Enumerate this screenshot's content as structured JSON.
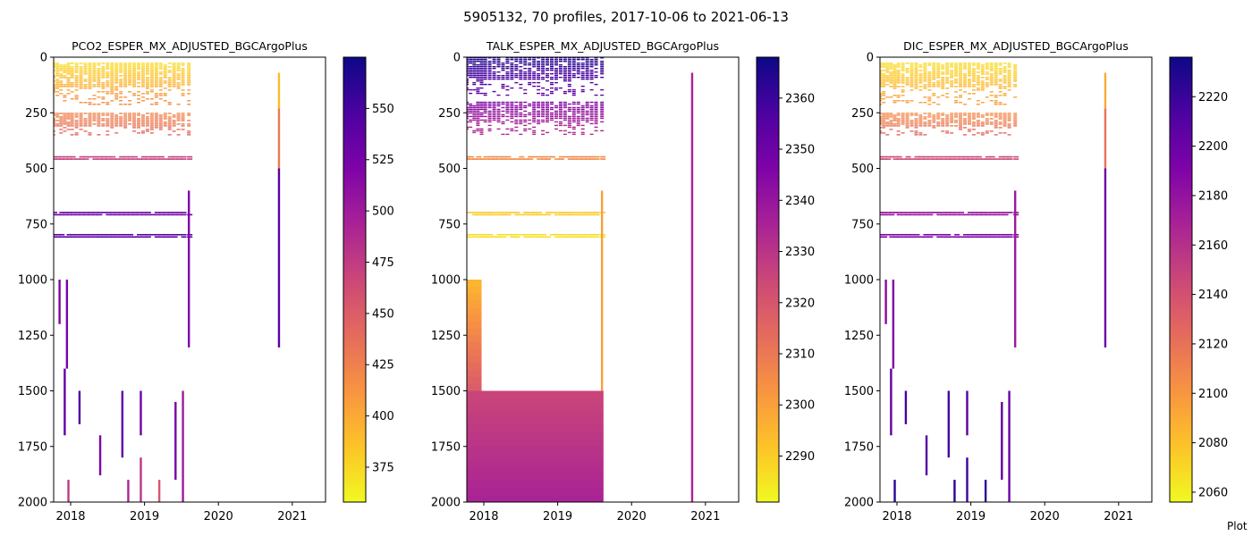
{
  "suptitle": "5905132, 70 profiles, 2017-10-06 to 2021-06-13",
  "footer": "Plot",
  "colormap": "plasma_r",
  "chart_data": [
    {
      "type": "heatmap",
      "title": "PCO2_ESPER_MX_ADJUSTED_BGCArgoPlus",
      "xlabel": "",
      "ylabel": "",
      "x_range": [
        2017.77,
        2021.45
      ],
      "y_range": [
        2000,
        0
      ],
      "x_ticks": [
        2018,
        2019,
        2020,
        2021
      ],
      "y_ticks": [
        0,
        250,
        500,
        750,
        1000,
        1250,
        1500,
        1750,
        2000
      ],
      "colorbar": {
        "range": [
          358,
          575
        ],
        "ticks": [
          375,
          400,
          425,
          450,
          475,
          500,
          525,
          550
        ]
      },
      "profile_times": [
        2017.77,
        2017.82,
        2017.87,
        2017.92,
        2017.97,
        2018.02,
        2018.08,
        2018.14,
        2018.2,
        2018.26,
        2018.32,
        2018.38,
        2018.44,
        2018.5,
        2018.56,
        2018.62,
        2018.68,
        2018.74,
        2018.8,
        2018.86,
        2018.92,
        2018.98,
        2019.04,
        2019.1,
        2019.16,
        2019.22,
        2019.28,
        2019.34,
        2019.4,
        2019.46,
        2019.52,
        2019.6,
        2020.82
      ],
      "depth_bands": [
        {
          "depth": [
            25,
            210
          ],
          "value_top": 372,
          "value_bottom": 415
        },
        {
          "depth": [
            250,
            350
          ],
          "value_top": 422,
          "value_bottom": 440
        },
        {
          "depth": [
            445,
            455
          ],
          "value": 470
        },
        {
          "depth": [
            695,
            705
          ],
          "value": 530
        },
        {
          "depth": [
            795,
            805
          ],
          "value": 540
        }
      ],
      "segments": [
        {
          "t": 2019.6,
          "depth": [
            600,
            1305
          ],
          "value": 520
        },
        {
          "t": 2020.82,
          "depth": [
            70,
            230
          ],
          "value": 390
        },
        {
          "t": 2020.82,
          "depth": [
            230,
            500
          ],
          "value": 430
        },
        {
          "t": 2020.82,
          "depth": [
            500,
            1305
          ],
          "value": 540
        },
        {
          "t": 2017.85,
          "depth": [
            1000,
            1200
          ],
          "value": 520
        },
        {
          "t": 2017.95,
          "depth": [
            1000,
            1400
          ],
          "value": 525
        },
        {
          "t": 2017.92,
          "depth": [
            1400,
            1700
          ],
          "value": 535
        },
        {
          "t": 2018.12,
          "depth": [
            1500,
            1650
          ],
          "value": 545
        },
        {
          "t": 2018.7,
          "depth": [
            1500,
            1800
          ],
          "value": 540
        },
        {
          "t": 2018.95,
          "depth": [
            1500,
            1700
          ],
          "value": 530
        },
        {
          "t": 2018.95,
          "depth": [
            1800,
            2000
          ],
          "value": 480
        },
        {
          "t": 2019.42,
          "depth": [
            1550,
            1900
          ],
          "value": 525
        },
        {
          "t": 2019.52,
          "depth": [
            1500,
            2000
          ],
          "value": 500
        },
        {
          "t": 2018.4,
          "depth": [
            1700,
            1880
          ],
          "value": 520
        },
        {
          "t": 2017.97,
          "depth": [
            1900,
            2000
          ],
          "value": 475
        },
        {
          "t": 2018.78,
          "depth": [
            1900,
            2000
          ],
          "value": 490
        },
        {
          "t": 2019.2,
          "depth": [
            1900,
            2000
          ],
          "value": 455
        }
      ]
    },
    {
      "type": "heatmap",
      "title": "TALK_ESPER_MX_ADJUSTED_BGCArgoPlus",
      "xlabel": "",
      "ylabel": "",
      "x_range": [
        2017.77,
        2021.45
      ],
      "y_range": [
        2000,
        0
      ],
      "x_ticks": [
        2018,
        2019,
        2020,
        2021
      ],
      "y_ticks": [
        0,
        250,
        500,
        750,
        1000,
        1250,
        1500,
        1750,
        2000
      ],
      "colorbar": {
        "range": [
          2281,
          2368
        ],
        "ticks": [
          2290,
          2300,
          2310,
          2320,
          2330,
          2340,
          2350,
          2360
        ]
      },
      "profile_times": [
        2017.77,
        2017.82,
        2017.87,
        2017.92,
        2017.97,
        2018.02,
        2018.08,
        2018.14,
        2018.2,
        2018.26,
        2018.32,
        2018.38,
        2018.44,
        2018.5,
        2018.56,
        2018.62,
        2018.68,
        2018.74,
        2018.8,
        2018.86,
        2018.92,
        2018.98,
        2019.04,
        2019.1,
        2019.16,
        2019.22,
        2019.28,
        2019.34,
        2019.4,
        2019.46,
        2019.52,
        2019.6,
        2020.82
      ],
      "depth_bands": [
        {
          "depth": [
            0,
            170
          ],
          "value_top": 2364,
          "value_bottom": 2350
        },
        {
          "depth": [
            200,
            350
          ],
          "value_top": 2345,
          "value_bottom": 2330
        },
        {
          "depth": [
            445,
            455
          ],
          "value": 2305
        },
        {
          "depth": [
            695,
            705
          ],
          "value": 2290
        },
        {
          "depth": [
            795,
            805
          ],
          "value": 2286
        }
      ],
      "segments": [
        {
          "t": 2019.6,
          "depth": [
            600,
            1500
          ],
          "value": 2300
        },
        {
          "t": 2020.82,
          "depth": [
            70,
            2000
          ],
          "value": 2335
        }
      ],
      "blocks": [
        {
          "t": [
            2017.77,
            2017.97
          ],
          "depth": [
            1000,
            1500
          ],
          "value_top": 2295,
          "value_bottom": 2318
        },
        {
          "t": [
            2017.77,
            2019.62
          ],
          "depth": [
            1500,
            2000
          ],
          "value_top": 2325,
          "value_bottom": 2335
        }
      ]
    },
    {
      "type": "heatmap",
      "title": "DIC_ESPER_MX_ADJUSTED_BGCArgoPlus",
      "xlabel": "",
      "ylabel": "",
      "x_range": [
        2017.77,
        2021.45
      ],
      "y_range": [
        2000,
        0
      ],
      "x_ticks": [
        2018,
        2019,
        2020,
        2021
      ],
      "y_ticks": [
        0,
        250,
        500,
        750,
        1000,
        1250,
        1500,
        1750,
        2000
      ],
      "colorbar": {
        "range": [
          2056,
          2236
        ],
        "ticks": [
          2060,
          2080,
          2100,
          2120,
          2140,
          2160,
          2180,
          2200,
          2220
        ]
      },
      "profile_times": [
        2017.77,
        2017.82,
        2017.87,
        2017.92,
        2017.97,
        2018.02,
        2018.08,
        2018.14,
        2018.2,
        2018.26,
        2018.32,
        2018.38,
        2018.44,
        2018.5,
        2018.56,
        2018.62,
        2018.68,
        2018.74,
        2018.8,
        2018.86,
        2018.92,
        2018.98,
        2019.04,
        2019.1,
        2019.16,
        2019.22,
        2019.28,
        2019.34,
        2019.4,
        2019.46,
        2019.52,
        2019.6,
        2020.82
      ],
      "depth_bands": [
        {
          "depth": [
            25,
            210
          ],
          "value_top": 2068,
          "value_bottom": 2095
        },
        {
          "depth": [
            250,
            350
          ],
          "value_top": 2105,
          "value_bottom": 2125
        },
        {
          "depth": [
            445,
            455
          ],
          "value": 2145
        },
        {
          "depth": [
            695,
            705
          ],
          "value": 2180
        },
        {
          "depth": [
            795,
            805
          ],
          "value": 2190
        }
      ],
      "segments": [
        {
          "t": 2019.6,
          "depth": [
            600,
            1305
          ],
          "value": 2175
        },
        {
          "t": 2020.82,
          "depth": [
            70,
            230
          ],
          "value": 2090
        },
        {
          "t": 2020.82,
          "depth": [
            230,
            500
          ],
          "value": 2120
        },
        {
          "t": 2020.82,
          "depth": [
            500,
            1305
          ],
          "value": 2200
        },
        {
          "t": 2017.85,
          "depth": [
            1000,
            1200
          ],
          "value": 2185
        },
        {
          "t": 2017.95,
          "depth": [
            1000,
            1400
          ],
          "value": 2190
        },
        {
          "t": 2017.92,
          "depth": [
            1400,
            1700
          ],
          "value": 2205
        },
        {
          "t": 2018.12,
          "depth": [
            1500,
            1650
          ],
          "value": 2215
        },
        {
          "t": 2018.7,
          "depth": [
            1500,
            1800
          ],
          "value": 2215
        },
        {
          "t": 2018.95,
          "depth": [
            1500,
            1700
          ],
          "value": 2210
        },
        {
          "t": 2018.95,
          "depth": [
            1800,
            2000
          ],
          "value": 2220
        },
        {
          "t": 2019.42,
          "depth": [
            1550,
            1900
          ],
          "value": 2205
        },
        {
          "t": 2019.52,
          "depth": [
            1500,
            2000
          ],
          "value": 2200
        },
        {
          "t": 2018.4,
          "depth": [
            1700,
            1880
          ],
          "value": 2210
        },
        {
          "t": 2017.97,
          "depth": [
            1900,
            2000
          ],
          "value": 2225
        },
        {
          "t": 2018.78,
          "depth": [
            1900,
            2000
          ],
          "value": 2225
        },
        {
          "t": 2019.2,
          "depth": [
            1900,
            2000
          ],
          "value": 2225
        }
      ]
    }
  ]
}
